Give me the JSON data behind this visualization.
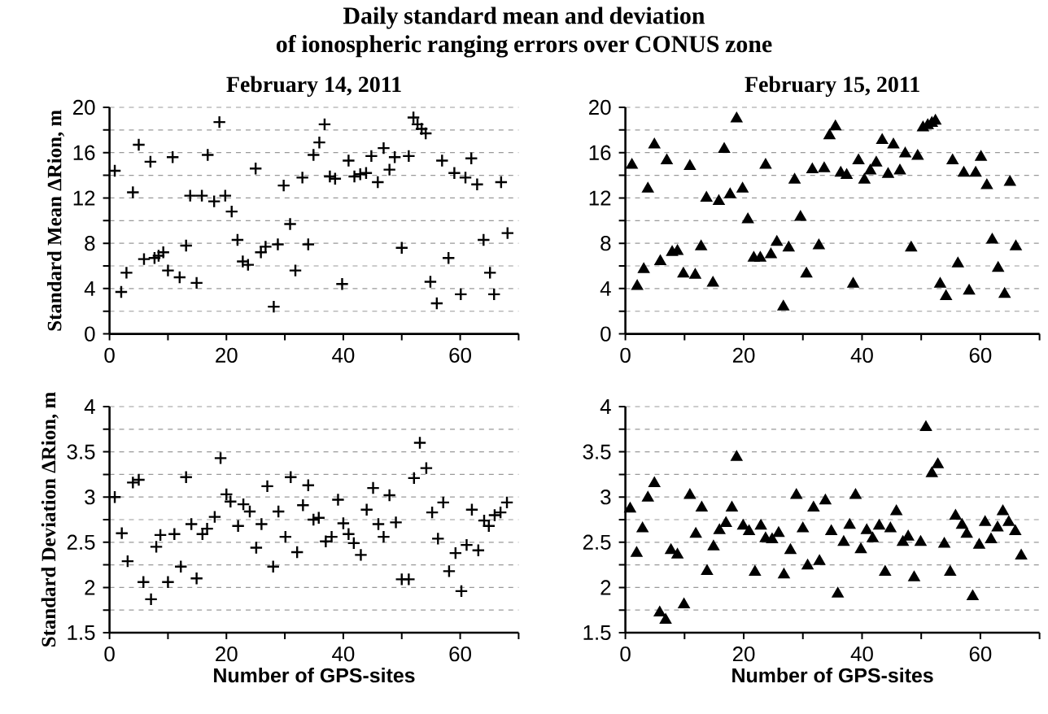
{
  "chart_data": [
    {
      "type": "scatter",
      "title": "Daily standard mean and deviation of ionospheric ranging errors over CONUS zone",
      "subtitle": "February 14, 2011",
      "ylabel": "Standard Mean ΔRion, m",
      "color": "#000000",
      "marker": "cross",
      "grid": "y",
      "xlim": [
        0,
        70
      ],
      "ylim": [
        0,
        20
      ],
      "xticks": [
        0,
        {
          "value": 10,
          "label": null
        },
        20,
        {
          "value": 30,
          "label": null
        },
        40,
        {
          "value": 50,
          "label": null
        },
        60,
        {
          "value": 70,
          "label": null
        }
      ],
      "yticks": [
        0,
        {
          "value": 2,
          "label": null
        },
        4,
        {
          "value": 6,
          "label": null
        },
        8,
        {
          "value": 10,
          "label": null
        },
        12,
        {
          "value": 14,
          "label": null
        },
        16,
        {
          "value": 18,
          "label": null
        },
        20
      ],
      "x": [
        0.9,
        2,
        2.9,
        4,
        5,
        5.9,
        7,
        7.7,
        8.4,
        9.2,
        10,
        10.8,
        12,
        13.1,
        13.8,
        14.9,
        15.8,
        16.8,
        17.9,
        18.8,
        19.8,
        20.9,
        21.9,
        22.8,
        23.7,
        25,
        25.9,
        26.7,
        28.1,
        28.8,
        29.8,
        30.9,
        31.8,
        33,
        34,
        34.9,
        35.9,
        36.8,
        37.7,
        38.6,
        39.8,
        40.9,
        41.9,
        42.9,
        43.9,
        44.8,
        45.9,
        46.9,
        47.9,
        48.8,
        50,
        51.2,
        52,
        52.7,
        53.4,
        54.1,
        54.9,
        56,
        56.9,
        58,
        59,
        60.1,
        60.9,
        61.9,
        62.9,
        64,
        65.1,
        65.8,
        67,
        68.1
      ],
      "values": [
        14.4,
        3.7,
        5.4,
        12.5,
        16.7,
        6.6,
        15.2,
        6.7,
        6.9,
        7.2,
        5.6,
        15.6,
        5.0,
        7.8,
        12.2,
        4.5,
        12.2,
        15.8,
        11.7,
        18.7,
        12.2,
        10.8,
        8.3,
        6.4,
        6.1,
        14.6,
        7.2,
        7.7,
        2.4,
        7.9,
        13.1,
        9.7,
        5.6,
        13.8,
        7.9,
        15.8,
        16.9,
        18.5,
        13.9,
        13.7,
        4.4,
        15.3,
        13.9,
        14.1,
        14.2,
        15.7,
        13.4,
        16.4,
        14.5,
        15.6,
        7.6,
        15.7,
        19.1,
        18.5,
        18.1,
        17.7,
        4.6,
        2.7,
        15.3,
        6.7,
        14.2,
        3.5,
        13.8,
        15.5,
        13.2,
        8.3,
        5.4,
        3.5,
        13.4,
        8.9
      ]
    },
    {
      "type": "scatter",
      "subtitle": "February 15, 2011",
      "color": "#000000",
      "marker": "triangle",
      "grid": "y",
      "xlim": [
        0,
        70
      ],
      "ylim": [
        0,
        20
      ],
      "xticks": [
        0,
        {
          "value": 10,
          "label": null
        },
        20,
        {
          "value": 30,
          "label": null
        },
        40,
        {
          "value": 50,
          "label": null
        },
        60,
        {
          "value": 70,
          "label": null
        }
      ],
      "yticks": [
        0,
        {
          "value": 2,
          "label": null
        },
        4,
        {
          "value": 6,
          "label": null
        },
        8,
        {
          "value": 10,
          "label": null
        },
        12,
        {
          "value": 14,
          "label": null
        },
        16,
        {
          "value": 18,
          "label": null
        },
        20
      ],
      "x": [
        1.1,
        2,
        3.1,
        3.8,
        4.9,
        5.9,
        7,
        7.9,
        8.8,
        9.8,
        10.9,
        11.8,
        12.8,
        13.7,
        14.8,
        15.8,
        16.7,
        17.7,
        18.8,
        19.8,
        20.7,
        21.7,
        22.8,
        23.7,
        24.6,
        25.6,
        26.7,
        27.6,
        28.6,
        29.6,
        30.6,
        31.6,
        32.7,
        33.6,
        34.5,
        35.5,
        36.4,
        37.4,
        38.5,
        39.4,
        40.4,
        41.4,
        42.4,
        43.4,
        44.4,
        45.3,
        46.4,
        47.3,
        48.3,
        49.4,
        50.3,
        51.1,
        51.8,
        52.4,
        53.2,
        54.2,
        55.3,
        56.2,
        57.2,
        58.1,
        59.2,
        60.1,
        61.1,
        62,
        63,
        64.1,
        65,
        66
      ],
      "values": [
        14.9,
        4.2,
        5.7,
        12.8,
        16.7,
        6.4,
        15.3,
        7.2,
        7.3,
        5.3,
        14.8,
        5.2,
        7.7,
        12.0,
        4.5,
        11.7,
        16.3,
        12.3,
        19.0,
        12.8,
        10.1,
        6.7,
        6.7,
        14.9,
        7.0,
        8.1,
        2.4,
        7.6,
        13.6,
        10.3,
        5.3,
        14.5,
        7.8,
        14.6,
        17.5,
        18.3,
        14.2,
        14.0,
        4.4,
        15.3,
        13.6,
        14.4,
        15.1,
        17.1,
        14.1,
        16.7,
        14.4,
        15.9,
        7.6,
        15.7,
        18.2,
        18.4,
        18.6,
        18.8,
        4.4,
        3.3,
        15.3,
        6.2,
        14.2,
        3.8,
        14.2,
        15.6,
        13.1,
        8.3,
        5.8,
        3.5,
        13.4,
        7.7
      ]
    },
    {
      "type": "scatter",
      "xlabel": "Number of GPS-sites",
      "ylabel": "Standard Deviation ΔRion, m",
      "color": "#000000",
      "marker": "cross",
      "grid": "y",
      "xlim": [
        0,
        70
      ],
      "ylim": [
        1.5,
        4
      ],
      "xticks": [
        0,
        {
          "value": 10,
          "label": null
        },
        20,
        {
          "value": 30,
          "label": null
        },
        40,
        {
          "value": 50,
          "label": null
        },
        60,
        {
          "value": 70,
          "label": null
        }
      ],
      "yticks": [
        1.5,
        {
          "value": 1.75,
          "label": null
        },
        2,
        {
          "value": 2.25,
          "label": null
        },
        2.5,
        {
          "value": 2.75,
          "label": null
        },
        3,
        {
          "value": 3.25,
          "label": null
        },
        3.5,
        {
          "value": 3.75,
          "label": null
        },
        4
      ],
      "x": [
        0.9,
        2.1,
        3.1,
        4,
        5,
        5.8,
        7.1,
        8,
        8.7,
        10,
        11.1,
        12.2,
        13.1,
        14,
        14.9,
        15.9,
        16.7,
        18,
        19,
        20,
        20.7,
        22,
        22.9,
        24,
        25.1,
        26,
        27,
        28,
        28.9,
        30.1,
        31,
        32.1,
        33.1,
        34,
        34.9,
        35.8,
        37,
        38,
        39.1,
        40,
        40.9,
        41.8,
        43,
        44,
        45.1,
        46,
        46.9,
        47.9,
        49,
        50,
        51.2,
        52.1,
        53.1,
        54.2,
        55.2,
        56.2,
        57.1,
        58.1,
        59.2,
        60.2,
        61.1,
        62,
        63.1,
        64.1,
        64.9,
        65.9,
        66.9,
        68
      ],
      "values": [
        3.0,
        2.6,
        2.29,
        3.16,
        3.19,
        2.06,
        1.87,
        2.45,
        2.58,
        2.06,
        2.59,
        2.23,
        3.22,
        2.7,
        2.1,
        2.59,
        2.65,
        2.78,
        3.43,
        3.03,
        2.95,
        2.68,
        2.92,
        2.84,
        2.44,
        2.7,
        3.12,
        2.23,
        2.84,
        2.56,
        3.22,
        2.39,
        2.91,
        3.13,
        2.75,
        2.77,
        2.51,
        2.56,
        2.97,
        2.71,
        2.59,
        2.49,
        2.36,
        2.86,
        3.1,
        2.7,
        2.56,
        3.02,
        2.72,
        2.09,
        2.09,
        3.21,
        3.6,
        3.32,
        2.83,
        2.54,
        2.94,
        2.18,
        2.38,
        1.96,
        2.47,
        2.86,
        2.41,
        2.74,
        2.68,
        2.8,
        2.83,
        2.94
      ]
    },
    {
      "type": "scatter",
      "xlabel": "Number of GPS-sites",
      "color": "#000000",
      "marker": "triangle",
      "grid": "y",
      "xlim": [
        0,
        70
      ],
      "ylim": [
        1.5,
        4
      ],
      "xticks": [
        0,
        {
          "value": 10,
          "label": null
        },
        20,
        {
          "value": 30,
          "label": null
        },
        40,
        {
          "value": 50,
          "label": null
        },
        60,
        {
          "value": 70,
          "label": null
        }
      ],
      "yticks": [
        1.5,
        {
          "value": 1.75,
          "label": null
        },
        2,
        {
          "value": 2.25,
          "label": null
        },
        2.5,
        {
          "value": 2.75,
          "label": null
        },
        3,
        {
          "value": 3.25,
          "label": null
        },
        3.5,
        {
          "value": 3.75,
          "label": null
        },
        4
      ],
      "x": [
        0.8,
        1.9,
        2.9,
        3.8,
        4.9,
        5.8,
        6.8,
        7.7,
        8.8,
        9.9,
        10.9,
        11.9,
        12.9,
        13.8,
        14.9,
        15.9,
        17,
        18,
        18.8,
        19.9,
        20.9,
        21.9,
        22.9,
        23.7,
        24.8,
        25.9,
        26.8,
        27.9,
        28.9,
        30,
        30.8,
        31.8,
        32.8,
        33.8,
        34.8,
        35.9,
        36.9,
        37.9,
        38.9,
        39.8,
        40.8,
        41.8,
        42.9,
        43.9,
        44.8,
        45.8,
        46.9,
        47.8,
        48.8,
        49.9,
        50.8,
        51.8,
        52.8,
        53.9,
        54.9,
        55.8,
        56.9,
        57.7,
        58.7,
        59.8,
        60.8,
        61.8,
        62.9,
        63.8,
        64.8,
        65.9,
        66.9
      ],
      "values": [
        2.87,
        2.38,
        2.65,
        2.99,
        3.15,
        1.72,
        1.64,
        2.41,
        2.36,
        1.81,
        3.02,
        2.59,
        2.88,
        2.18,
        2.45,
        2.63,
        2.71,
        2.88,
        3.44,
        2.68,
        2.62,
        2.17,
        2.68,
        2.54,
        2.53,
        2.6,
        2.14,
        2.41,
        3.02,
        2.65,
        2.24,
        2.88,
        2.29,
        2.96,
        2.62,
        1.93,
        2.5,
        2.69,
        3.02,
        2.42,
        2.63,
        2.54,
        2.68,
        2.17,
        2.65,
        2.84,
        2.5,
        2.56,
        2.11,
        2.5,
        3.77,
        3.26,
        3.36,
        2.48,
        2.17,
        2.79,
        2.69,
        2.59,
        1.9,
        2.47,
        2.72,
        2.53,
        2.66,
        2.84,
        2.72,
        2.62,
        2.35
      ]
    }
  ]
}
